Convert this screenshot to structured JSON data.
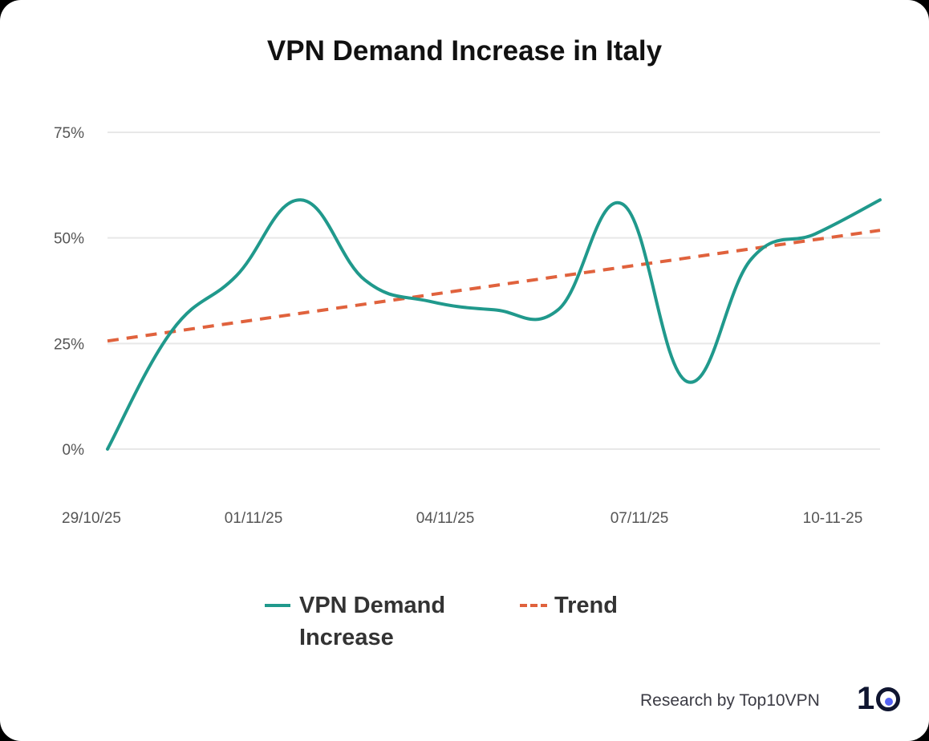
{
  "chart_data": {
    "type": "line",
    "title": "VPN Demand Increase in Italy",
    "xlabel": "",
    "ylabel": "",
    "x": [
      "29/10/25",
      "30/10/25",
      "31/10/25",
      "01/11/25",
      "02/11/25",
      "03/11/25",
      "04/11/25",
      "05/11/25",
      "06/11/25",
      "07/11/25",
      "08/11/25",
      "09/11/25",
      "10/11/25"
    ],
    "x_tick_labels": [
      "29/10/25",
      "01/11/25",
      "04/11/25",
      "07/11/25",
      "10-11-25"
    ],
    "y_tick_labels": [
      "0%",
      "25%",
      "50%",
      "75%"
    ],
    "ylim": [
      0,
      75
    ],
    "grid": true,
    "legend_position": "bottom",
    "series": [
      {
        "name": "VPN Demand Increase",
        "style": "solid",
        "color": "#20998c",
        "values": [
          0,
          28,
          41,
          59,
          40,
          35,
          33,
          33,
          58,
          16,
          45,
          51,
          59
        ]
      },
      {
        "name": "Trend",
        "style": "dashed",
        "color": "#e0623d",
        "values": [
          25.6,
          27.8,
          30.0,
          32.1,
          34.3,
          36.5,
          38.7,
          40.9,
          43.1,
          45.2,
          47.4,
          49.6,
          51.8
        ]
      }
    ]
  },
  "legend": {
    "line1": "VPN Demand",
    "line2": "Increase",
    "trend": "Trend"
  },
  "footer": {
    "credit": "Research by Top10VPN",
    "logo_text": "10"
  }
}
